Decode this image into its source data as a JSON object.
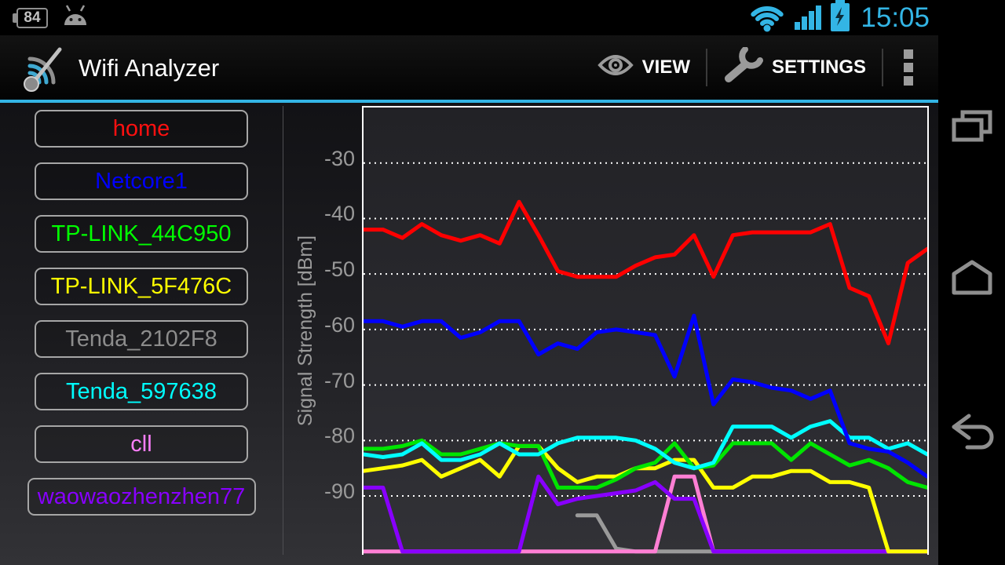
{
  "status_bar": {
    "battery_pct": "84",
    "time": "15:05",
    "icons": [
      "battery-84-icon",
      "android-robot-icon",
      "wifi-icon",
      "cell-signal-icon",
      "battery-charging-icon"
    ]
  },
  "action_bar": {
    "title": "Wifi Analyzer",
    "view_label": "VIEW",
    "settings_label": "SETTINGS",
    "icons": [
      "wifi-analyzer-logo",
      "eye-icon",
      "wrench-icon",
      "overflow-menu-icon"
    ]
  },
  "sidebar": {
    "networks": [
      {
        "label": "home",
        "color": "#FF1010"
      },
      {
        "label": "Netcore1",
        "color": "#0000FF"
      },
      {
        "label": "TP-LINK_44C950",
        "color": "#00FF00"
      },
      {
        "label": "TP-LINK_5F476C",
        "color": "#FFFF00"
      },
      {
        "label": "Tenda_2102F8",
        "color": "#8C8C8C"
      },
      {
        "label": "Tenda_597638",
        "color": "#00FFFF"
      },
      {
        "label": "cll",
        "color": "#FF7FFF"
      },
      {
        "label": "waowaozhenzhen77",
        "color": "#8800FF"
      }
    ]
  },
  "chart_data": {
    "type": "line",
    "ylabel": "Signal Strength [dBm]",
    "yticks": [
      -30,
      -40,
      -50,
      -60,
      -70,
      -80,
      -90
    ],
    "ylim": [
      -100,
      -20
    ],
    "grid": "horizontal dotted white",
    "legend_position": "none",
    "x_points": 30,
    "series": [
      {
        "name": "Tenda_2102F8",
        "color": "#9a9a9a",
        "values": [
          null,
          null,
          null,
          null,
          null,
          null,
          null,
          null,
          null,
          null,
          null,
          -93.5,
          -93.5,
          -99.5,
          -100,
          -100,
          -100,
          -100,
          -100,
          -100,
          -100,
          -100,
          -100,
          -100,
          -100,
          -100,
          -100,
          -100,
          -100,
          -100
        ]
      },
      {
        "name": "cll",
        "color": "#FF7FD4",
        "values": [
          -100,
          -100,
          -100,
          -100,
          -100,
          -100,
          -100,
          -100,
          -100,
          -100,
          -100,
          -100,
          -100,
          -100,
          -100,
          -100,
          -86.5,
          -86.5,
          -100,
          -100,
          -100,
          -100,
          -100,
          -100,
          -100,
          -100,
          -100,
          -100,
          -100,
          -100
        ]
      },
      {
        "name": "waowaozhenzhen77",
        "color": "#8800FF",
        "values": [
          -88.5,
          -88.5,
          -100,
          -100,
          -100,
          -100,
          -100,
          -100,
          -100,
          -86.5,
          -91.5,
          -90.5,
          -90,
          -89.5,
          -89,
          -87.5,
          -90.5,
          -90.5,
          -100,
          -100,
          -100,
          -100,
          -100,
          -100,
          -100,
          -100,
          -100,
          -100,
          -100,
          -100
        ]
      },
      {
        "name": "TP-LINK_5F476C",
        "color": "#FFFF00",
        "values": [
          -85.5,
          -85,
          -84.5,
          -83.5,
          -86.5,
          -85,
          -83.5,
          -86.5,
          -81,
          -81,
          -85,
          -87.5,
          -86.5,
          -86.5,
          -85,
          -85,
          -83.5,
          -83.5,
          -88.5,
          -88.5,
          -86.5,
          -86.5,
          -85.5,
          -85.5,
          -87.5,
          -87.5,
          -88.5,
          -100,
          -100,
          -100
        ]
      },
      {
        "name": "TP-LINK_44C950",
        "color": "#00E400",
        "values": [
          -81.5,
          -81.5,
          -81,
          -80,
          -82.5,
          -82.5,
          -81.5,
          -80.5,
          -81,
          -81,
          -88.5,
          -88.5,
          -88.5,
          -87,
          -85,
          -84,
          -80.5,
          -85,
          -84.5,
          -80.5,
          -80.5,
          -80.5,
          -83.5,
          -80.5,
          -82.5,
          -84.5,
          -83.5,
          -85,
          -87.5,
          -88.5
        ]
      },
      {
        "name": "Tenda_597638",
        "color": "#00FFFF",
        "values": [
          -82.5,
          -83,
          -82.5,
          -80.5,
          -83.5,
          -83.5,
          -82.5,
          -80.5,
          -82.5,
          -82.5,
          -80.5,
          -79.5,
          -79.5,
          -79.5,
          -80,
          -81.5,
          -84,
          -85,
          -84,
          -77.5,
          -77.5,
          -77.5,
          -79.5,
          -77.5,
          -76.5,
          -79.5,
          -79.5,
          -81.5,
          -80.5,
          -82.5
        ]
      },
      {
        "name": "Netcore1",
        "color": "#0000FF",
        "values": [
          -58.5,
          -58.5,
          -59.5,
          -58.5,
          -58.5,
          -61.5,
          -60.5,
          -58.5,
          -58.5,
          -64.5,
          -62.5,
          -63.5,
          -60.5,
          -60,
          -60.5,
          -61,
          -68.5,
          -57.5,
          -73.5,
          -69,
          -69.5,
          -70.5,
          -71,
          -72.5,
          -71,
          -80.5,
          -81.5,
          -82,
          -84,
          -86.5
        ]
      },
      {
        "name": "home",
        "color": "#FF0000",
        "values": [
          -42,
          -42,
          -43.5,
          -41,
          -43,
          -44,
          -43,
          -44.5,
          -37,
          -43,
          -49.5,
          -50.5,
          -50.5,
          -50.5,
          -48.5,
          -47,
          -46.5,
          -43,
          -50.5,
          -43,
          -42.5,
          -42.5,
          -42.5,
          -42.5,
          -41,
          -52.5,
          -54,
          -62.5,
          -48,
          -45.5
        ]
      }
    ]
  },
  "nav_bar": {
    "icons": [
      "recents-icon",
      "home-icon",
      "back-icon"
    ]
  },
  "colors": {
    "accent": "#33B5E5",
    "grid": "#FFFFFF",
    "axis_text": "#9A9A9A"
  }
}
